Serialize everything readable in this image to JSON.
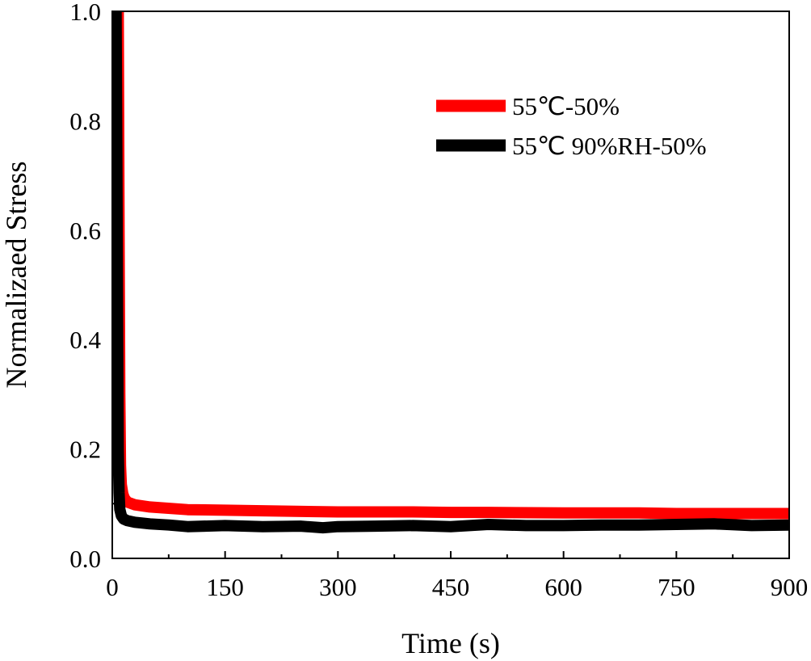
{
  "chart_data": {
    "type": "line",
    "xlabel": "Time (s)",
    "ylabel": "Normalizaed Stress",
    "xlim": [
      0,
      900
    ],
    "ylim": [
      0.0,
      1.0
    ],
    "xticks": [
      0,
      150,
      300,
      450,
      600,
      750,
      900
    ],
    "xtick_labels": [
      "0",
      "150",
      "300",
      "450",
      "600",
      "750",
      "900"
    ],
    "yticks": [
      0.0,
      0.2,
      0.4,
      0.6,
      0.8,
      1.0
    ],
    "ytick_labels": [
      "0.0",
      "0.2",
      "0.4",
      "0.6",
      "0.8",
      "1.0"
    ],
    "grid": false,
    "legend_position": "top-right",
    "series": [
      {
        "name": "55℃-50%",
        "color": "#ff0000",
        "x": [
          8,
          9,
          10,
          11,
          12,
          14,
          16,
          20,
          30,
          50,
          100,
          150,
          200,
          300,
          400,
          450,
          500,
          600,
          700,
          750,
          800,
          900
        ],
        "y": [
          1.0,
          0.6,
          0.3,
          0.17,
          0.135,
          0.118,
          0.11,
          0.103,
          0.098,
          0.094,
          0.089,
          0.088,
          0.087,
          0.085,
          0.085,
          0.084,
          0.084,
          0.083,
          0.083,
          0.082,
          0.082,
          0.082
        ]
      },
      {
        "name": "55℃ 90%RH-50%",
        "color": "#000000",
        "x": [
          5,
          6,
          7,
          8,
          9,
          10,
          12,
          15,
          20,
          30,
          50,
          75,
          100,
          150,
          200,
          250,
          280,
          300,
          350,
          400,
          450,
          500,
          550,
          600,
          650,
          700,
          750,
          800,
          850,
          900
        ],
        "y": [
          1.0,
          0.75,
          0.45,
          0.2,
          0.12,
          0.09,
          0.078,
          0.072,
          0.069,
          0.066,
          0.063,
          0.061,
          0.058,
          0.06,
          0.058,
          0.059,
          0.056,
          0.058,
          0.059,
          0.06,
          0.058,
          0.062,
          0.06,
          0.06,
          0.061,
          0.061,
          0.062,
          0.063,
          0.06,
          0.061
        ]
      }
    ]
  }
}
